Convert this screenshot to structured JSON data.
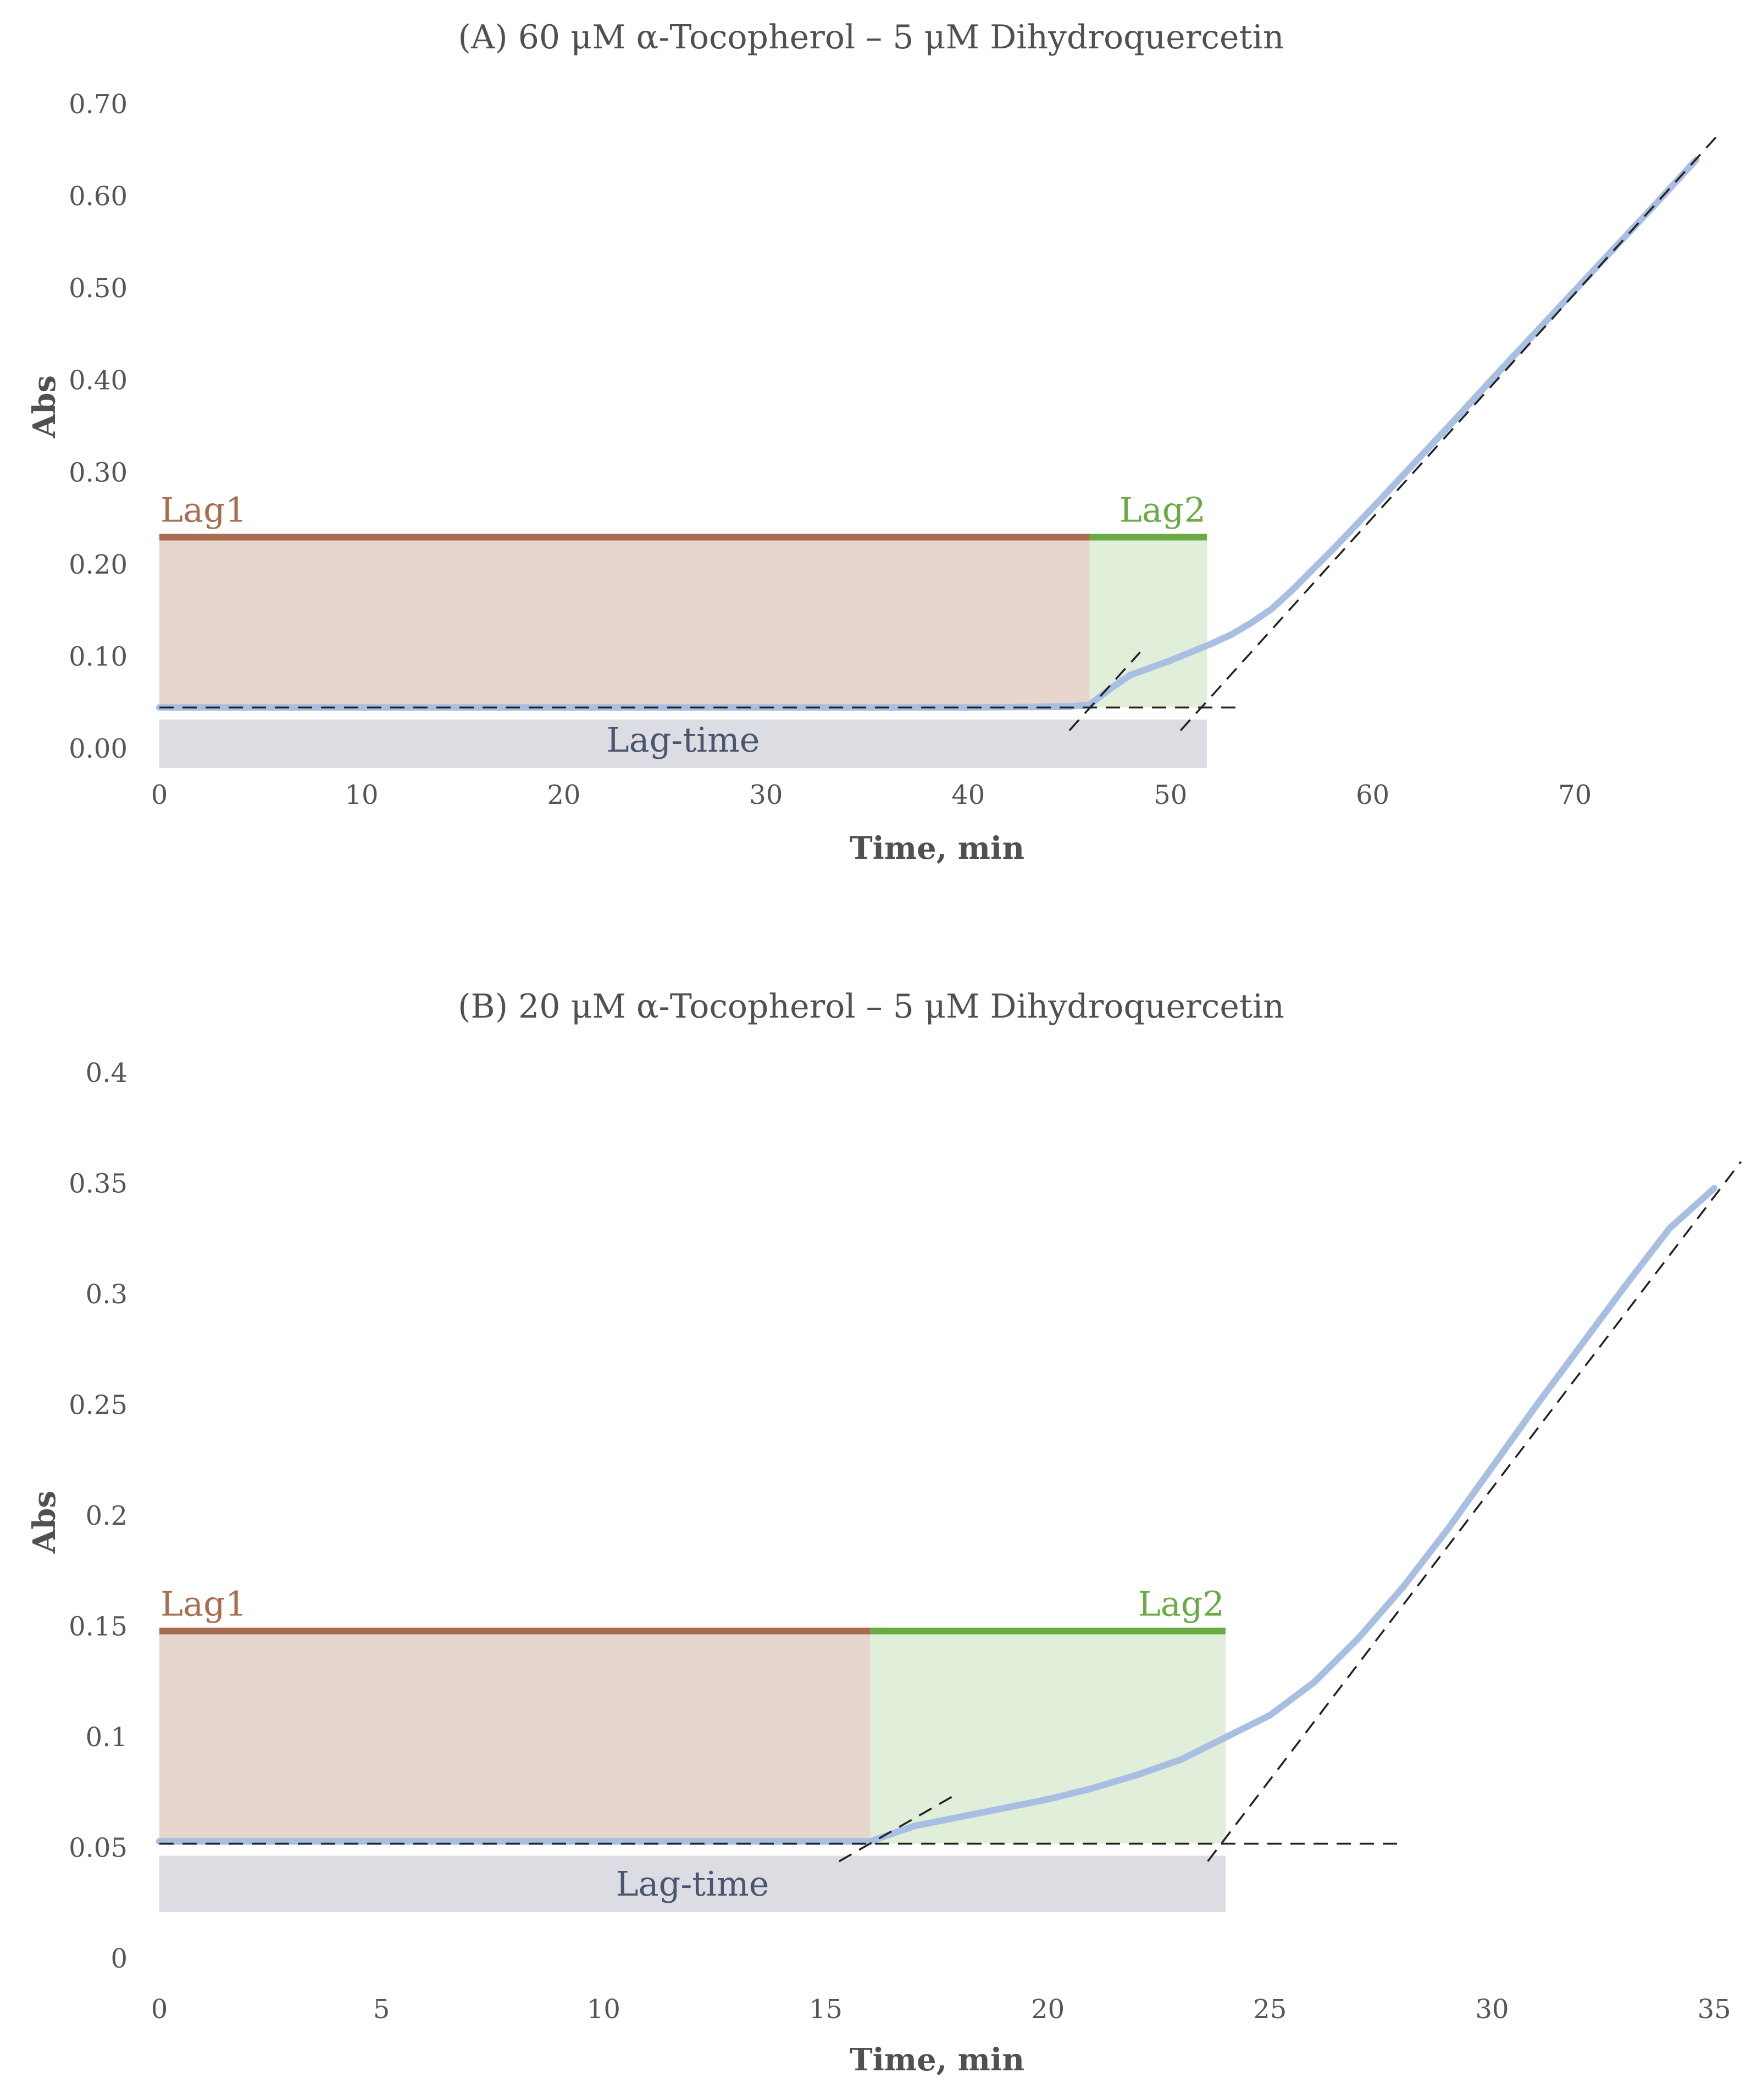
{
  "chart_data": [
    {
      "type": "line",
      "title": "(A) 60 μM α-Tocopherol – 5 μM Dihydroquercetin",
      "xlabel": "Time, min",
      "ylabel": "Abs",
      "xlim": [
        0,
        78
      ],
      "ylim": [
        0,
        0.7
      ],
      "xticks": [
        0,
        10,
        20,
        30,
        40,
        50,
        60,
        70
      ],
      "yticks": [
        "0.00",
        "0.10",
        "0.20",
        "0.30",
        "0.40",
        "0.50",
        "0.60",
        "0.70"
      ],
      "grid": false,
      "baseline": 0.045,
      "lag1_end": 46,
      "lag2_end": 51.8,
      "lag_bar_top": 0.23,
      "region_labels": {
        "lag1": "Lag1",
        "lag2": "Lag2",
        "lag_time": "Lag-time"
      },
      "colors": {
        "lag1": "#a86d4f",
        "lag2": "#6aaa45",
        "curve": "#a8bfe3",
        "lag_time": "#dcdde2"
      },
      "series": [
        {
          "x": [
            0,
            10,
            20,
            30,
            40,
            45,
            46,
            47,
            48,
            49,
            50,
            51,
            52,
            53,
            54,
            55,
            56,
            57,
            58,
            60,
            62,
            64,
            66,
            68,
            70,
            72,
            74,
            76
          ],
          "y": [
            0.045,
            0.045,
            0.045,
            0.045,
            0.045,
            0.046,
            0.048,
            0.065,
            0.08,
            0.088,
            0.096,
            0.105,
            0.114,
            0.124,
            0.137,
            0.152,
            0.172,
            0.194,
            0.216,
            0.262,
            0.309,
            0.356,
            0.404,
            0.451,
            0.498,
            0.545,
            0.592,
            0.64
          ]
        }
      ],
      "tangents": [
        {
          "x": [
            0,
            53.5
          ],
          "y": [
            0.045,
            0.045
          ]
        },
        {
          "x": [
            45,
            48.5
          ],
          "y": [
            0.02,
            0.105
          ]
        },
        {
          "x": [
            50.5,
            77
          ],
          "y": [
            0.02,
            0.665
          ]
        }
      ]
    },
    {
      "type": "line",
      "title": "(B) 20 μM α-Tocopherol – 5 μM Dihydroquercetin",
      "xlabel": "Time, min",
      "ylabel": "Abs",
      "xlim": [
        0,
        36
      ],
      "ylim": [
        0,
        0.4
      ],
      "xticks": [
        0,
        5,
        10,
        15,
        20,
        25,
        30,
        35
      ],
      "yticks": [
        "0",
        "0.05",
        "0.1",
        "0.15",
        "0.2",
        "0.25",
        "0.3",
        "0.35",
        "0.4"
      ],
      "grid": false,
      "baseline": 0.052,
      "lag1_end": 16,
      "lag2_end": 24,
      "lag_bar_top": 0.148,
      "region_labels": {
        "lag1": "Lag1",
        "lag2": "Lag2",
        "lag_time": "Lag-time"
      },
      "colors": {
        "lag1": "#a86d4f",
        "lag2": "#6aaa45",
        "curve": "#a8bfe3",
        "lag_time": "#dcdde2"
      },
      "series": [
        {
          "x": [
            0,
            5,
            10,
            15,
            16,
            17,
            18,
            19,
            20,
            21,
            22,
            23,
            24,
            25,
            26,
            27,
            28,
            29,
            30,
            31,
            32,
            33,
            34,
            35
          ],
          "y": [
            0.053,
            0.053,
            0.053,
            0.053,
            0.053,
            0.06,
            0.064,
            0.068,
            0.072,
            0.077,
            0.083,
            0.09,
            0.1,
            0.11,
            0.125,
            0.145,
            0.168,
            0.194,
            0.222,
            0.25,
            0.277,
            0.304,
            0.33,
            0.348
          ]
        }
      ],
      "tangents": [
        {
          "x": [
            0,
            28
          ],
          "y": [
            0.052,
            0.052
          ]
        },
        {
          "x": [
            15.3,
            18
          ],
          "y": [
            0.044,
            0.075
          ]
        },
        {
          "x": [
            23.6,
            35.6
          ],
          "y": [
            0.044,
            0.36
          ]
        }
      ]
    }
  ]
}
